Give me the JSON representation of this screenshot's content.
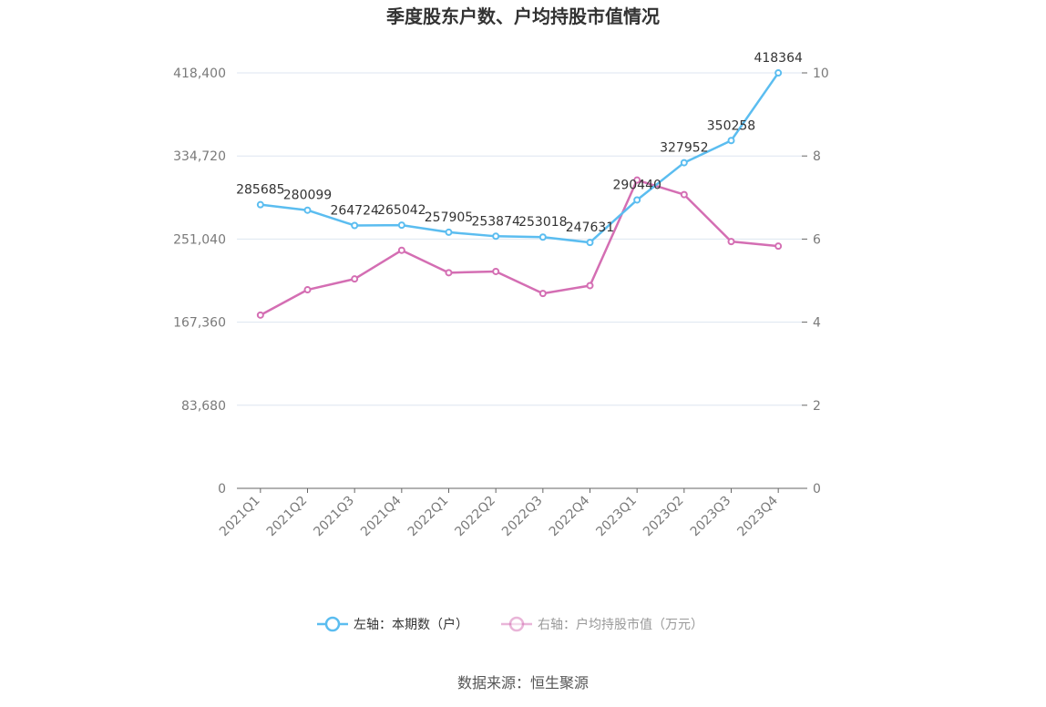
{
  "chart_data": {
    "type": "line",
    "title": "季度股东户数、户均持股市值情况",
    "categories": [
      "2021Q1",
      "2021Q2",
      "2021Q3",
      "2021Q4",
      "2022Q1",
      "2022Q2",
      "2022Q3",
      "2022Q4",
      "2023Q1",
      "2023Q2",
      "2023Q3",
      "2023Q4"
    ],
    "y_left": {
      "ticks": [
        "0",
        "83,680",
        "167,360",
        "251,040",
        "334,720",
        "418,400"
      ],
      "ylim": [
        0,
        418400
      ]
    },
    "y_right": {
      "ticks": [
        "0",
        "2",
        "4",
        "6",
        "8",
        "10"
      ],
      "ylim": [
        0,
        10
      ]
    },
    "grid": true,
    "legend_position": "bottom",
    "series": [
      {
        "name": "左轴：本期数（户）",
        "axis": "left",
        "color": "#5bbdf0",
        "values": [
          285685,
          280099,
          264724,
          265042,
          257905,
          253874,
          253018,
          247631,
          290440,
          327952,
          350258,
          418364
        ],
        "labels": [
          "285685",
          "280099",
          "264724",
          "265042",
          "257905",
          "253874",
          "253018",
          "247631",
          "290440",
          "327952",
          "350258",
          "418364"
        ]
      },
      {
        "name": "右轴：户均持股市值（万元）",
        "axis": "right",
        "color": "#d46eb3",
        "values": [
          4.17,
          4.78,
          5.04,
          5.73,
          5.19,
          5.22,
          4.69,
          4.88,
          7.42,
          7.07,
          5.94,
          5.83
        ]
      }
    ]
  },
  "source": "数据来源：恒生聚源"
}
